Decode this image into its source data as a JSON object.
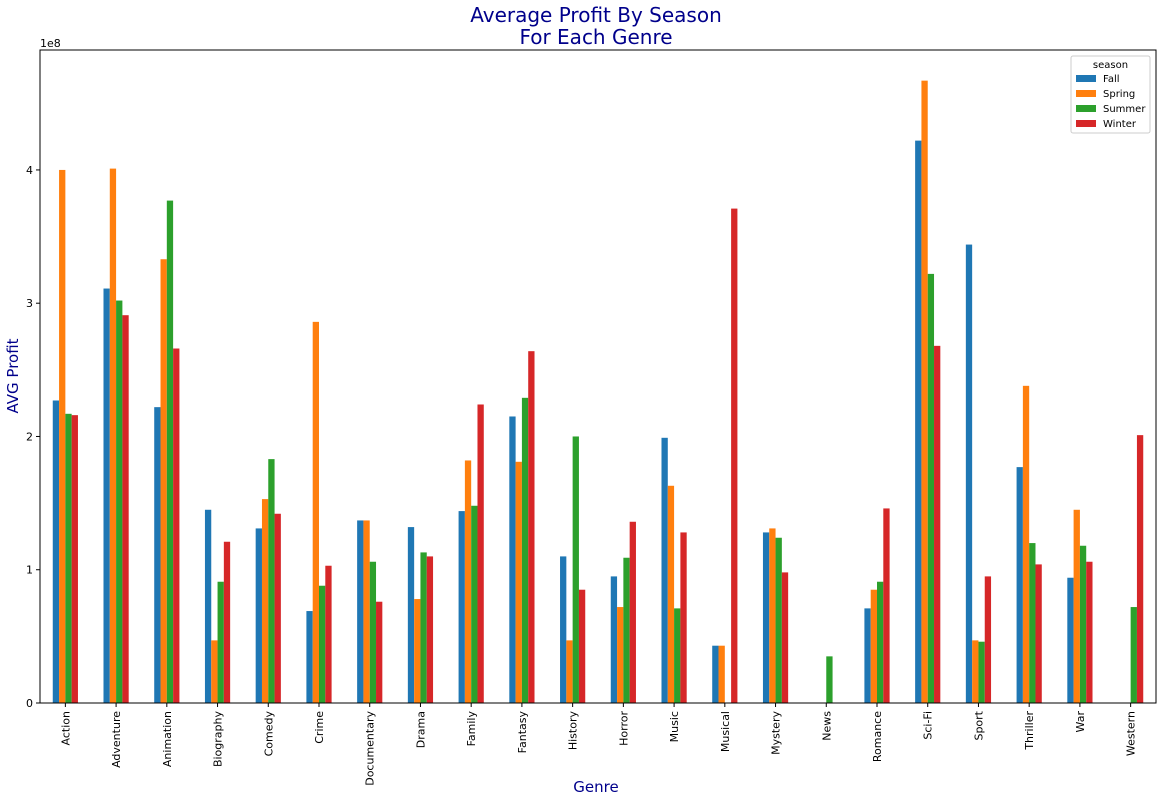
{
  "chart_data": {
    "type": "bar",
    "title": "Average Profit By Season\nFor Each Genre",
    "xlabel": "Genre",
    "ylabel": "AVG Profit",
    "y_multiplier_label": "1e8",
    "ylim": [
      0,
      490000000
    ],
    "yticks": [
      0,
      100000000,
      200000000,
      300000000,
      400000000
    ],
    "ytick_labels": [
      "0",
      "1",
      "2",
      "3",
      "4"
    ],
    "grid": false,
    "legend": {
      "title": "season",
      "placement": "top-right"
    },
    "categories": [
      "Action",
      "Adventure",
      "Animation",
      "Biography",
      "Comedy",
      "Crime",
      "Documentary",
      "Drama",
      "Family",
      "Fantasy",
      "History",
      "Horror",
      "Music",
      "Musical",
      "Mystery",
      "News",
      "Romance",
      "Sci-Fi",
      "Sport",
      "Thriller",
      "War",
      "Western"
    ],
    "series": [
      {
        "name": "Fall",
        "color": "#1f77b4",
        "values": [
          227000000,
          311000000,
          222000000,
          145000000,
          131000000,
          69000000,
          137000000,
          132000000,
          144000000,
          215000000,
          110000000,
          95000000,
          199000000,
          43000000,
          128000000,
          0,
          71000000,
          422000000,
          344000000,
          177000000,
          94000000,
          0
        ]
      },
      {
        "name": "Spring",
        "color": "#ff7f0e",
        "values": [
          400000000,
          401000000,
          333000000,
          47000000,
          153000000,
          286000000,
          137000000,
          78000000,
          182000000,
          181000000,
          47000000,
          72000000,
          163000000,
          43000000,
          131000000,
          0,
          85000000,
          467000000,
          47000000,
          238000000,
          145000000,
          0
        ]
      },
      {
        "name": "Summer",
        "color": "#2ca02c",
        "values": [
          217000000,
          302000000,
          377000000,
          91000000,
          183000000,
          88000000,
          106000000,
          113000000,
          148000000,
          229000000,
          200000000,
          109000000,
          71000000,
          0,
          124000000,
          35000000,
          91000000,
          322000000,
          46000000,
          120000000,
          118000000,
          72000000
        ]
      },
      {
        "name": "Winter",
        "color": "#d62728",
        "values": [
          216000000,
          291000000,
          266000000,
          121000000,
          142000000,
          103000000,
          76000000,
          110000000,
          224000000,
          264000000,
          85000000,
          136000000,
          128000000,
          371000000,
          98000000,
          0,
          146000000,
          268000000,
          95000000,
          104000000,
          106000000,
          201000000
        ]
      }
    ]
  }
}
